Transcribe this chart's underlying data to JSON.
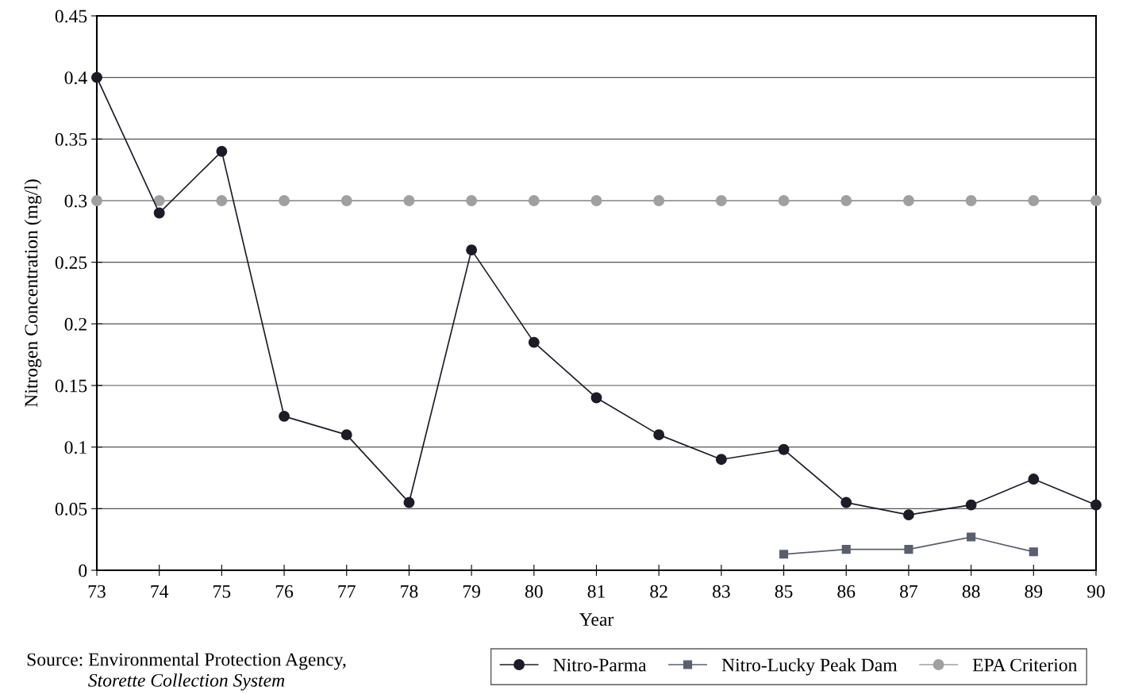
{
  "chart_data": {
    "type": "line",
    "xlabel": "Year",
    "ylabel": "Nitrogen Concentration (mg/l)",
    "categories": [
      "73",
      "74",
      "75",
      "76",
      "77",
      "78",
      "79",
      "80",
      "81",
      "82",
      "83",
      "85",
      "86",
      "87",
      "88",
      "89",
      "90"
    ],
    "series": [
      {
        "name": "Nitro-Parma",
        "color": "#1c1c28",
        "marker": "circle",
        "values": [
          0.4,
          0.29,
          0.34,
          0.125,
          0.11,
          0.055,
          0.26,
          0.185,
          0.14,
          0.11,
          0.09,
          0.098,
          0.055,
          0.045,
          0.053,
          0.074,
          0.053
        ]
      },
      {
        "name": "Nitro-Lucky Peak Dam",
        "color": "#5a5f6e",
        "marker": "square",
        "values": [
          null,
          null,
          null,
          null,
          null,
          null,
          null,
          null,
          null,
          null,
          null,
          0.013,
          0.017,
          0.017,
          0.027,
          0.015,
          null
        ]
      },
      {
        "name": "EPA Criterion",
        "color": "#a0a0a0",
        "marker": "circle",
        "values": [
          0.3,
          0.3,
          0.3,
          0.3,
          0.3,
          0.3,
          0.3,
          0.3,
          0.3,
          0.3,
          0.3,
          0.3,
          0.3,
          0.3,
          0.3,
          0.3,
          0.3
        ]
      }
    ],
    "ylim": [
      0,
      0.45
    ],
    "yticks": [
      0,
      0.05,
      0.1,
      0.15,
      0.2,
      0.25,
      0.3,
      0.35,
      0.4,
      0.45
    ],
    "grid": "y",
    "legend": "bottom right",
    "line_style": "solid",
    "annotations": [
      "Source: Environmental Protection Agency,",
      "Storette Collection System"
    ]
  }
}
